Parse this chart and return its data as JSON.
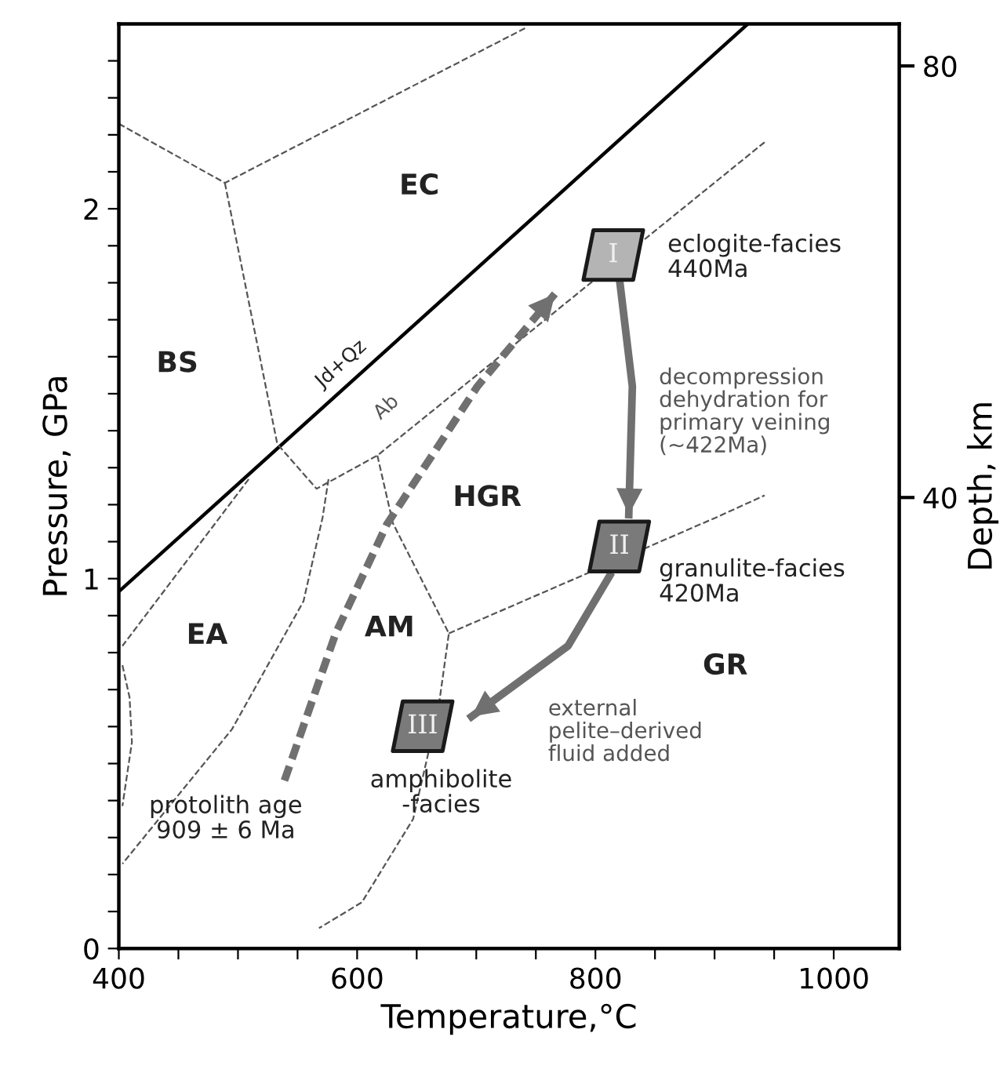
{
  "chart_data": {
    "type": "line",
    "xlabel": "Temperature,°C",
    "ylabel": "Pressure, GPa",
    "y2label": "Depth, km",
    "xlim": [
      400,
      1055
    ],
    "ylim": [
      0,
      2.5
    ],
    "y2lim": [
      -1.8,
      83.9
    ],
    "xticks": [
      400,
      {
        "value": 450,
        "label": null
      },
      600,
      {
        "value": 500,
        "label": null
      },
      {
        "value": 550,
        "label": null
      },
      {
        "value": 650,
        "label": null
      },
      {
        "value": 700,
        "label": null
      },
      {
        "value": 750,
        "label": null
      },
      800,
      {
        "value": 850,
        "label": null
      },
      {
        "value": 900,
        "label": null
      },
      {
        "value": 950,
        "label": null
      },
      1000
    ],
    "yticks": [
      0,
      {
        "value": 0.1,
        "label": null
      },
      {
        "value": 0.2,
        "label": null
      },
      {
        "value": 0.3,
        "label": null
      },
      {
        "value": 0.4,
        "label": null
      },
      {
        "value": 0.5,
        "label": null
      },
      {
        "value": 0.6,
        "label": null
      },
      {
        "value": 0.7,
        "label": null
      },
      {
        "value": 0.8,
        "label": null
      },
      {
        "value": 0.9,
        "label": null
      },
      1,
      {
        "value": 1.1,
        "label": null
      },
      {
        "value": 1.2,
        "label": null
      },
      {
        "value": 1.3,
        "label": null
      },
      {
        "value": 1.4,
        "label": null
      },
      {
        "value": 1.5,
        "label": null
      },
      {
        "value": 1.6,
        "label": null
      },
      {
        "value": 1.7,
        "label": null
      },
      {
        "value": 1.8,
        "label": null
      },
      {
        "value": 1.9,
        "label": null
      },
      2,
      {
        "value": 2.1,
        "label": null
      },
      {
        "value": 2.2,
        "label": null
      },
      {
        "value": 2.3,
        "label": null
      },
      {
        "value": 2.4,
        "label": null
      }
    ],
    "y2ticks": [
      40,
      80
    ],
    "grid": false,
    "legend": false,
    "series": [
      {
        "color": "#000000",
        "line_style": "solid",
        "marker": "none",
        "x": [
          400,
          928
        ],
        "values": [
          0.965,
          2.5
        ]
      },
      {
        "color": "#555555",
        "line_style": "dashed",
        "marker": "none",
        "x": [
          400,
          489,
          742
        ],
        "values": [
          2.23,
          2.07,
          2.49
        ]
      },
      {
        "color": "#555555",
        "line_style": "dashed",
        "marker": "none",
        "x": [
          489,
          533,
          566,
          617,
          942
        ],
        "values": [
          2.07,
          1.364,
          1.243,
          1.333,
          2.18
        ]
      },
      {
        "color": "#555555",
        "line_style": "dashed",
        "marker": "none",
        "x": [
          617,
          630,
          677,
          668,
          647,
          604,
          568
        ],
        "values": [
          1.333,
          1.15,
          0.852,
          0.644,
          0.35,
          0.125,
          0.055
        ]
      },
      {
        "color": "#555555",
        "line_style": "dashed",
        "marker": "none",
        "x": [
          677,
          901,
          942
        ],
        "values": [
          0.852,
          1.165,
          1.225
        ]
      },
      {
        "color": "#555555",
        "line_style": "dashed",
        "marker": "none",
        "x": [
          509,
          403
        ],
        "values": [
          1.269,
          0.818
        ]
      },
      {
        "color": "#555555",
        "line_style": "dashed",
        "marker": "none",
        "x": [
          576,
          571,
          555,
          495,
          403
        ],
        "values": [
          1.269,
          1.165,
          0.939,
          0.593,
          0.229
        ]
      },
      {
        "color": "#555555",
        "line_style": "dashed",
        "marker": "none",
        "x": [
          403,
          409,
          411,
          403
        ],
        "values": [
          0.766,
          0.679,
          0.558,
          0.385
        ]
      },
      {
        "color": "#707070",
        "line_style": "dashed",
        "marker": "none",
        "x": [
          539,
          582,
          625,
          701,
          766
        ],
        "values": [
          0.454,
          0.852,
          1.147,
          1.52,
          1.77
        ]
      },
      {
        "color": "#707070",
        "line_style": "solid",
        "marker": "none",
        "x": [
          820,
          831,
          828
        ],
        "values": [
          1.815,
          1.52,
          1.173
        ]
      },
      {
        "color": "#707070",
        "line_style": "solid",
        "marker": "none",
        "x": [
          812,
          777,
          696
        ],
        "values": [
          1.008,
          0.818,
          0.627
        ]
      },
      {
        "type": "scatter",
        "color": "#b4b4b4",
        "marker": "diamond",
        "x": [
          815
        ],
        "values": [
          1.875
        ]
      },
      {
        "type": "scatter",
        "color": "#7a7a7a",
        "marker": "diamond",
        "x": [
          820,
          655
        ],
        "values": [
          1.087,
          0.601
        ]
      }
    ],
    "annotations": [
      {
        "text": "I",
        "x": 815,
        "y": 1.875
      },
      {
        "text": "II",
        "x": 820,
        "y": 1.087
      },
      {
        "text": "III",
        "x": 655,
        "y": 0.601
      },
      "EC",
      "BS",
      "HGR",
      "EA",
      "AM",
      "GR",
      "Jd+Qz",
      "Ab",
      "eclogite-facies\n440Ma",
      "decompression\ndehydration for\nprimary veining\n(~422Ma)",
      "granulite-facies\n420Ma",
      "external\npelite–derived\nfluid added",
      "amphibolite\n-facies",
      "protolith age\n909 ± 6 Ma"
    ]
  }
}
